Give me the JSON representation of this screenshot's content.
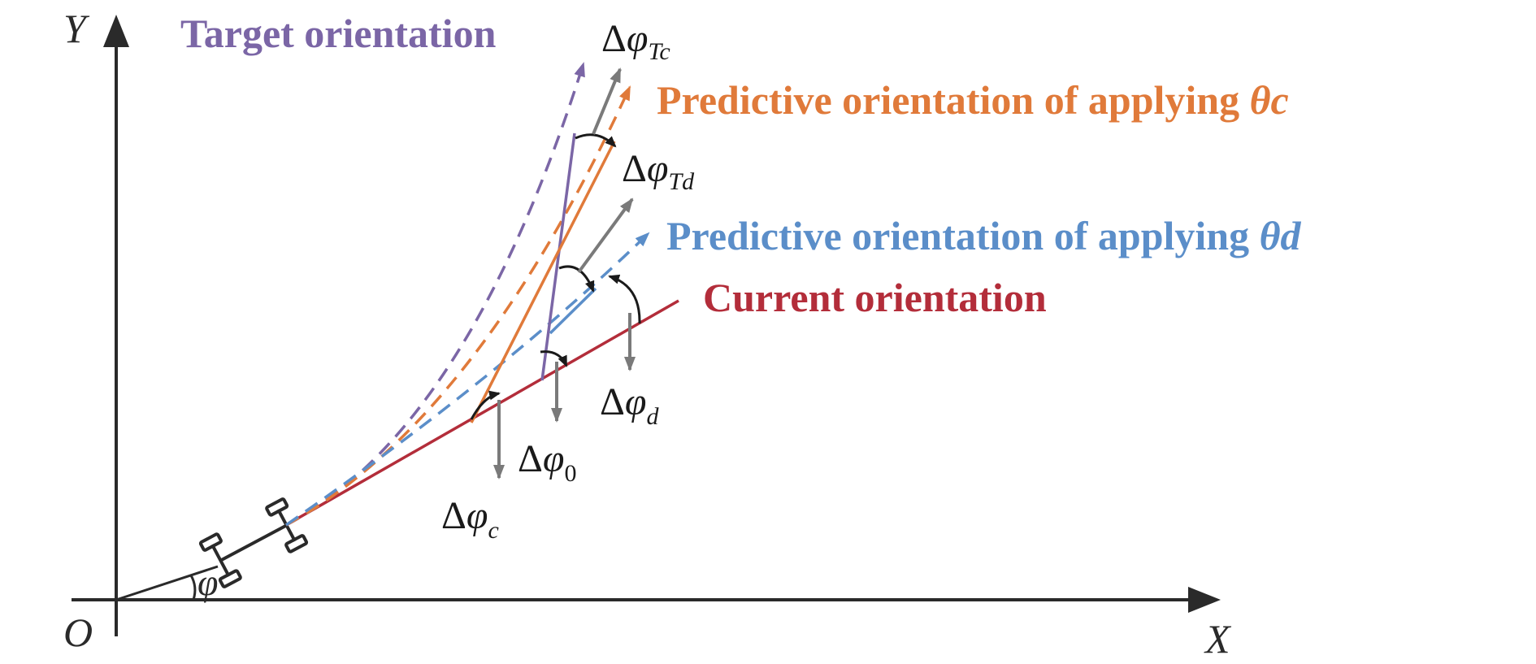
{
  "axes": {
    "origin_label": "O",
    "x_label": "X",
    "y_label": "Y",
    "heading_angle_label": "φ"
  },
  "legend": {
    "target": {
      "text": "Target orientation",
      "color": "#7b66a6"
    },
    "predictive_c": {
      "text": "Predictive orientation of applying ",
      "param": "θc",
      "color": "#e07a3a"
    },
    "predictive_d": {
      "text": "Predictive orientation of applying ",
      "param": "θd",
      "color": "#5b8ec9"
    },
    "current": {
      "text": "Current orientation",
      "color": "#b32d3a"
    }
  },
  "angle_labels": {
    "d_phi_Tc": {
      "delta": "Δ",
      "symbol": "φ",
      "sub": "Tc"
    },
    "d_phi_Td": {
      "delta": "Δ",
      "symbol": "φ",
      "sub": "Td"
    },
    "d_phi_d": {
      "delta": "Δ",
      "symbol": "φ",
      "sub": "d"
    },
    "d_phi_0": {
      "delta": "Δ",
      "symbol": "φ",
      "sub": "0"
    },
    "d_phi_c": {
      "delta": "Δ",
      "symbol": "φ",
      "sub": "c"
    }
  },
  "icons": {
    "vehicle": "vehicle-icon"
  },
  "colors": {
    "axis": "#2a2a2a",
    "pointer": "#7a7a7a"
  }
}
